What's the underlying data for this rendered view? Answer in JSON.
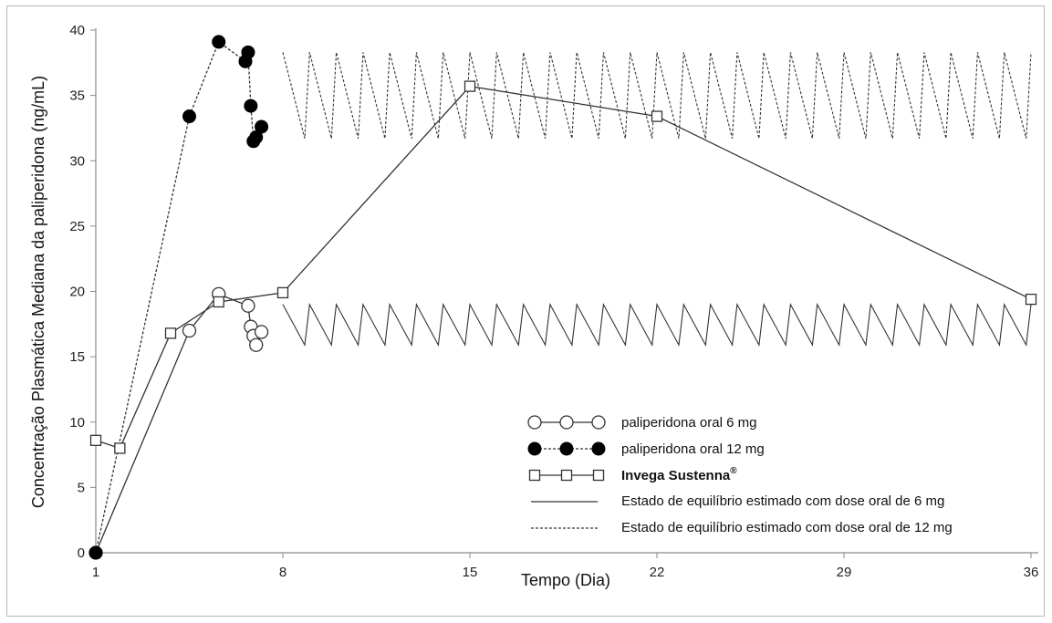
{
  "chart_data": {
    "type": "line",
    "title": "",
    "xlabel": "Tempo (Dia)",
    "ylabel": "Concentração Plasmática Mediana da paliperidona (ng/mL)",
    "xlim": [
      1,
      36
    ],
    "ylim": [
      0,
      40
    ],
    "xticks": [
      1,
      8,
      15,
      22,
      29,
      36
    ],
    "yticks": [
      0,
      5,
      10,
      15,
      20,
      25,
      30,
      35,
      40
    ],
    "grid": false,
    "legend_placement": "bottom-right",
    "series": [
      {
        "name": "paliperidona oral 6 mg",
        "marker": "open-circle",
        "line": "solid",
        "x": [
          1,
          4.5,
          5.6,
          6.7,
          6.8,
          6.9,
          7.0,
          7.2
        ],
        "y": [
          0,
          17.0,
          19.8,
          18.9,
          17.3,
          16.6,
          15.9,
          16.9
        ]
      },
      {
        "name": "paliperidona oral 12 mg",
        "marker": "filled-circle",
        "line": "dashed",
        "x": [
          1,
          4.5,
          5.6,
          6.6,
          6.7,
          6.8,
          6.9,
          7.0,
          7.2
        ],
        "y": [
          0,
          33.4,
          39.1,
          37.6,
          38.3,
          34.2,
          31.5,
          31.8,
          32.6
        ]
      },
      {
        "name": "Invega Sustenna",
        "name_suffix": "®",
        "marker": "open-square",
        "line": "solid",
        "x": [
          1,
          1.9,
          3.8,
          5.6,
          8,
          15,
          22,
          36
        ],
        "y": [
          8.6,
          8.0,
          16.8,
          19.2,
          19.9,
          35.7,
          33.4,
          19.4
        ]
      },
      {
        "name": "Estado de equilíbrio estimado com dose oral de 6 mg",
        "marker": "none",
        "line": "solid",
        "kind": "oscillation",
        "x_start": 8,
        "x_end": 35.9,
        "period": 1,
        "min": 15.9,
        "max": 19.0
      },
      {
        "name": "Estado de equilíbrio estimado com dose oral de 12 mg",
        "marker": "none",
        "line": "dashed",
        "kind": "oscillation",
        "x_start": 8,
        "x_end": 35.9,
        "period": 1,
        "min": 31.7,
        "max": 38.3
      }
    ]
  },
  "colors": {
    "line": "#333333",
    "axis": "#8a8a8a",
    "frame": "#b8b8b8"
  }
}
